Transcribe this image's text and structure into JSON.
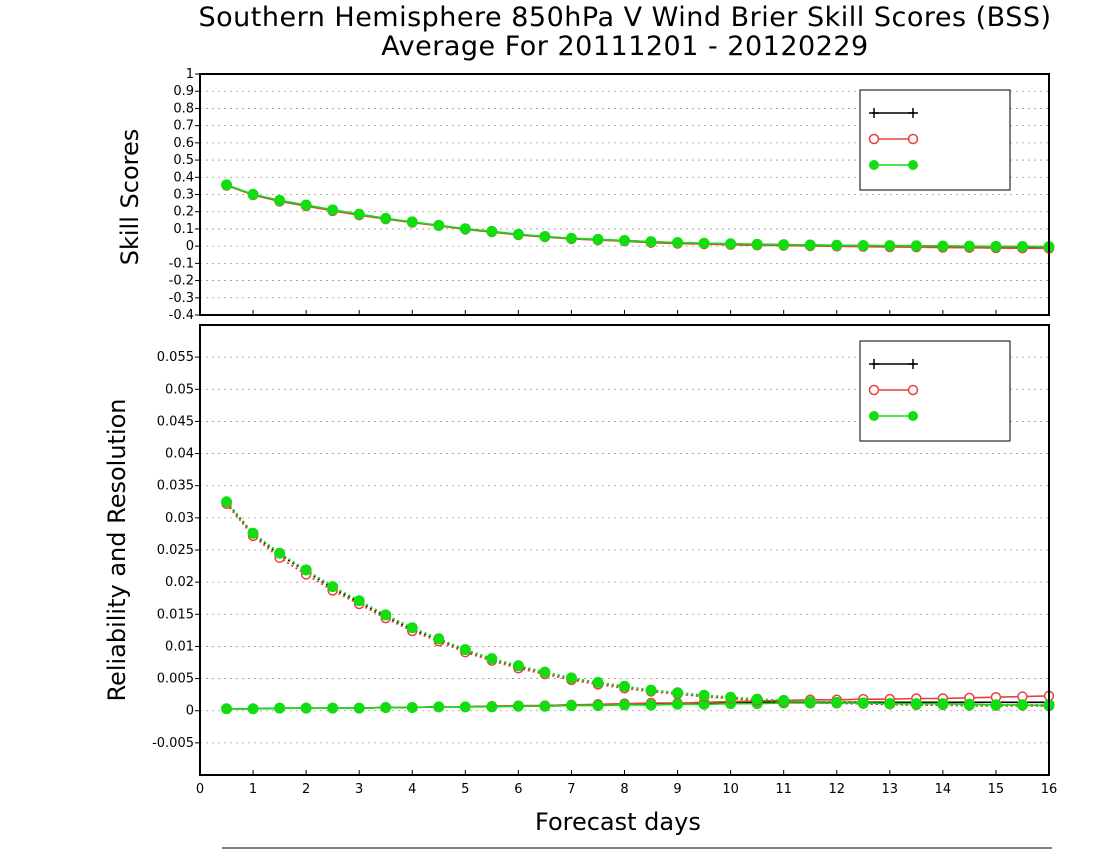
{
  "title": "Southern Hemisphere 850hPa V Wind Brier Skill Scores (BSS)",
  "subtitle": "Average For 20111201 - 20120229",
  "xlabel": "Forecast days",
  "colors": {
    "black": "#000000",
    "red": "#e8403c",
    "green": "#11dd11",
    "grid": "#999999"
  },
  "chart_data": [
    {
      "type": "line",
      "panel": "top",
      "ylabel": "Skill Scores",
      "xlim": [
        0,
        16
      ],
      "ylim": [
        -0.4,
        1
      ],
      "yticks": [
        -0.4,
        -0.3,
        -0.2,
        -0.1,
        0,
        0.1,
        0.2,
        0.3,
        0.4,
        0.5,
        0.6,
        0.7,
        0.8,
        0.9,
        1
      ],
      "xticks": [
        0,
        1,
        2,
        3,
        4,
        5,
        6,
        7,
        8,
        9,
        10,
        11,
        12,
        13,
        14,
        15,
        16
      ],
      "legend_position": "top-right",
      "x": [
        0.5,
        1,
        1.5,
        2,
        2.5,
        3,
        3.5,
        4,
        4.5,
        5,
        5.5,
        6,
        6.5,
        7,
        7.5,
        8,
        8.5,
        9,
        9.5,
        10,
        10.5,
        11,
        11.5,
        12,
        12.5,
        13,
        13.5,
        14,
        14.5,
        15,
        15.5,
        16
      ],
      "series": [
        {
          "key": "black",
          "marker": "plus",
          "line": "solid",
          "values": [
            0.355,
            0.3,
            0.265,
            0.238,
            0.21,
            0.185,
            0.16,
            0.14,
            0.12,
            0.1,
            0.085,
            0.068,
            0.055,
            0.045,
            0.038,
            0.032,
            0.025,
            0.02,
            0.016,
            0.013,
            0.01,
            0.008,
            0.006,
            0.004,
            0.003,
            0.002,
            0.001,
            0.0,
            -0.001,
            -0.002,
            -0.003,
            -0.004
          ]
        },
        {
          "key": "red",
          "marker": "open-circle",
          "line": "solid",
          "values": [
            0.352,
            0.297,
            0.26,
            0.233,
            0.205,
            0.18,
            0.157,
            0.137,
            0.118,
            0.097,
            0.082,
            0.065,
            0.053,
            0.042,
            0.035,
            0.029,
            0.02,
            0.015,
            0.012,
            0.008,
            0.005,
            0.003,
            0.001,
            -0.001,
            -0.003,
            -0.005,
            -0.006,
            -0.008,
            -0.009,
            -0.011,
            -0.012,
            -0.013
          ]
        },
        {
          "key": "green",
          "marker": "filled-circle",
          "line": "solid",
          "values": [
            0.356,
            0.301,
            0.266,
            0.239,
            0.211,
            0.186,
            0.161,
            0.141,
            0.121,
            0.101,
            0.086,
            0.069,
            0.056,
            0.046,
            0.039,
            0.033,
            0.026,
            0.021,
            0.017,
            0.014,
            0.011,
            0.009,
            0.007,
            0.005,
            0.004,
            0.003,
            0.002,
            0.001,
            0.0,
            -0.001,
            -0.002,
            -0.003
          ]
        }
      ]
    },
    {
      "type": "line",
      "panel": "bottom",
      "ylabel": "Reliability and Resolution",
      "xlim": [
        0,
        16
      ],
      "ylim": [
        -0.01,
        0.06
      ],
      "yticks": [
        -0.005,
        0,
        0.005,
        0.01,
        0.015,
        0.02,
        0.025,
        0.03,
        0.035,
        0.04,
        0.045,
        0.05,
        0.055
      ],
      "ytick_labels": [
        "-0.005",
        "0",
        "0.005",
        "0.01",
        "0.015",
        "0.02",
        "0.025",
        "0.03",
        "0.035",
        "0.04",
        "0.045",
        "0.05",
        "0.055"
      ],
      "xticks": [
        0,
        1,
        2,
        3,
        4,
        5,
        6,
        7,
        8,
        9,
        10,
        11,
        12,
        13,
        14,
        15,
        16
      ],
      "legend_position": "top-right",
      "x": [
        0.5,
        1,
        1.5,
        2,
        2.5,
        3,
        3.5,
        4,
        4.5,
        5,
        5.5,
        6,
        6.5,
        7,
        7.5,
        8,
        8.5,
        9,
        9.5,
        10,
        10.5,
        11,
        11.5,
        12,
        12.5,
        13,
        13.5,
        14,
        14.5,
        15,
        15.5,
        16
      ],
      "series": [
        {
          "key": "black",
          "marker": "plus",
          "line": "solid",
          "measure": "reliability",
          "values": [
            0.0003,
            0.0003,
            0.0004,
            0.0004,
            0.0004,
            0.0004,
            0.0005,
            0.0005,
            0.0006,
            0.0006,
            0.0007,
            0.0007,
            0.0008,
            0.0009,
            0.0009,
            0.001,
            0.0011,
            0.0011,
            0.0012,
            0.0012,
            0.0013,
            0.0013,
            0.0013,
            0.0013,
            0.0013,
            0.0013,
            0.0013,
            0.0013,
            0.0013,
            0.0013,
            0.0013,
            0.0013
          ]
        },
        {
          "key": "red",
          "marker": "open-circle",
          "line": "solid",
          "measure": "reliability",
          "values": [
            0.0003,
            0.0003,
            0.0004,
            0.0004,
            0.0004,
            0.0004,
            0.0005,
            0.0005,
            0.0006,
            0.0006,
            0.0007,
            0.0008,
            0.0008,
            0.0009,
            0.001,
            0.0011,
            0.0012,
            0.0012,
            0.0013,
            0.0014,
            0.0015,
            0.0016,
            0.0017,
            0.0017,
            0.0018,
            0.0018,
            0.0019,
            0.0019,
            0.002,
            0.0021,
            0.0022,
            0.0023
          ]
        },
        {
          "key": "green",
          "marker": "filled-circle",
          "line": "solid",
          "measure": "reliability",
          "values": [
            0.0003,
            0.0003,
            0.0004,
            0.0004,
            0.0004,
            0.0004,
            0.0005,
            0.0005,
            0.0006,
            0.0006,
            0.0006,
            0.0007,
            0.0007,
            0.0008,
            0.0008,
            0.0009,
            0.0009,
            0.001,
            0.001,
            0.0011,
            0.0011,
            0.0012,
            0.0012,
            0.0012,
            0.0012,
            0.0011,
            0.0011,
            0.0011,
            0.001,
            0.0009,
            0.0009,
            0.0008
          ]
        },
        {
          "key": "black",
          "marker": "plus",
          "line": "dotted",
          "measure": "resolution",
          "values": [
            0.0324,
            0.0275,
            0.0243,
            0.0217,
            0.0191,
            0.0169,
            0.0147,
            0.0127,
            0.011,
            0.0094,
            0.008,
            0.0069,
            0.0059,
            0.005,
            0.0043,
            0.0037,
            0.0031,
            0.0027,
            0.0023,
            0.002,
            0.0017,
            0.0015,
            0.0013,
            0.0012,
            0.0011,
            0.001,
            0.0009,
            0.0009,
            0.0008,
            0.0008,
            0.0008,
            0.0008
          ]
        },
        {
          "key": "red",
          "marker": "open-circle",
          "line": "dotted",
          "measure": "resolution",
          "values": [
            0.0322,
            0.0272,
            0.0238,
            0.0212,
            0.0187,
            0.0166,
            0.0144,
            0.0124,
            0.0108,
            0.0091,
            0.0078,
            0.0066,
            0.0057,
            0.0048,
            0.0041,
            0.0035,
            0.003,
            0.0026,
            0.0022,
            0.0019,
            0.0016,
            0.0014,
            0.0013,
            0.0012,
            0.0011,
            0.001,
            0.0009,
            0.0009,
            0.0008,
            0.0008,
            0.0008,
            0.0008
          ]
        },
        {
          "key": "green",
          "marker": "filled-circle",
          "line": "dotted",
          "measure": "resolution",
          "values": [
            0.0325,
            0.0276,
            0.0245,
            0.0219,
            0.0193,
            0.0171,
            0.0149,
            0.0129,
            0.0112,
            0.0095,
            0.0081,
            0.007,
            0.006,
            0.0051,
            0.0044,
            0.0038,
            0.0032,
            0.0028,
            0.0024,
            0.0021,
            0.0018,
            0.0016,
            0.0014,
            0.0013,
            0.0012,
            0.0011,
            0.001,
            0.001,
            0.0009,
            0.0009,
            0.0009,
            0.0009
          ]
        }
      ]
    }
  ]
}
